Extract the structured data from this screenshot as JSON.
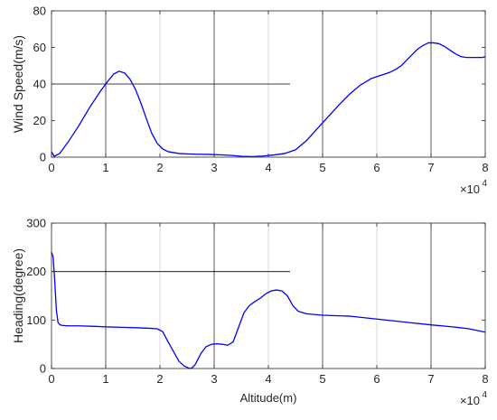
{
  "chart_data": [
    {
      "type": "line",
      "title": "",
      "xlabel": "",
      "ylabel": "Wind Speed(m/s)",
      "x_exponent_label": "×10",
      "x_exponent_power": "4",
      "xlim": [
        0,
        80000
      ],
      "ylim": [
        0,
        80
      ],
      "grid": "vertical lines at every x tick (alternating dark and light)",
      "x_ticks": [
        0,
        10000,
        20000,
        30000,
        40000,
        50000,
        60000,
        70000,
        80000
      ],
      "x_tick_labels": [
        "0",
        "1",
        "2",
        "3",
        "4",
        "5",
        "6",
        "7",
        "8"
      ],
      "y_ticks": [
        0,
        20,
        40,
        60,
        80
      ],
      "y_tick_labels": [
        "0",
        "20",
        "40",
        "60",
        "80"
      ],
      "reference_line": {
        "y": 40,
        "x_start": 0,
        "x_end": 44000,
        "color": "#000000"
      },
      "series": [
        {
          "color": "#0000ff",
          "x": [
            0,
            500,
            1500,
            3000,
            5000,
            7000,
            9000,
            10500,
            11500,
            12500,
            13500,
            14500,
            15500,
            16500,
            17500,
            18500,
            19500,
            20500,
            21500,
            22500,
            23500,
            25000,
            27000,
            29000,
            31000,
            33000,
            35000,
            37000,
            39000,
            41000,
            43000,
            45000,
            47000,
            49000,
            51000,
            53000,
            55000,
            57000,
            59000,
            61000,
            62500,
            63500,
            64500,
            65500,
            66500,
            67500,
            68500,
            69500,
            70500,
            71500,
            72500,
            73500,
            74500,
            75500,
            76500,
            77500,
            78500,
            79500,
            80000
          ],
          "y": [
            3,
            0.5,
            2,
            8,
            17,
            27,
            36,
            42,
            45.5,
            47,
            46,
            42.5,
            37,
            29.5,
            21,
            13,
            7.5,
            4.5,
            3,
            2.5,
            2,
            1.8,
            1.6,
            1.5,
            1.3,
            1,
            0.5,
            0.3,
            0.6,
            1.2,
            2,
            4,
            9,
            15.5,
            22,
            28.5,
            34.5,
            39.5,
            43,
            45,
            46.5,
            48,
            50,
            53,
            56,
            59,
            61,
            62.5,
            62.5,
            62,
            60.5,
            58.5,
            56.5,
            55,
            54.5,
            54.5,
            54.5,
            54.5,
            55
          ]
        }
      ]
    },
    {
      "type": "line",
      "title": "",
      "xlabel": "Altitude(m)",
      "ylabel": "Heading(degree)",
      "x_exponent_label": "×10",
      "x_exponent_power": "4",
      "xlim": [
        0,
        80000
      ],
      "ylim": [
        0,
        300
      ],
      "grid": "vertical lines at every x tick (alternating dark and light)",
      "x_ticks": [
        0,
        10000,
        20000,
        30000,
        40000,
        50000,
        60000,
        70000,
        80000
      ],
      "x_tick_labels": [
        "0",
        "1",
        "2",
        "3",
        "4",
        "5",
        "6",
        "7",
        "8"
      ],
      "y_ticks": [
        0,
        100,
        200,
        300
      ],
      "y_tick_labels": [
        "0",
        "100",
        "200",
        "300"
      ],
      "reference_line": {
        "y": 200,
        "x_start": 0,
        "x_end": 44000,
        "color": "#000000"
      },
      "series": [
        {
          "color": "#0000ff",
          "x": [
            0,
            300,
            600,
            900,
            1200,
            1600,
            2000,
            3000,
            5000,
            8000,
            10000,
            13000,
            16000,
            18000,
            19500,
            20500,
            21500,
            22500,
            23500,
            24500,
            25500,
            26000,
            26500,
            27500,
            28500,
            29500,
            30500,
            31500,
            32500,
            33500,
            34500,
            35500,
            36500,
            37500,
            38500,
            39500,
            40500,
            41500,
            42500,
            43500,
            44500,
            45500,
            47000,
            50000,
            55000,
            60000,
            65000,
            70000,
            74000,
            77000,
            80000
          ],
          "y": [
            240,
            230,
            180,
            120,
            95,
            90,
            89,
            88,
            88,
            87,
            86,
            85,
            84,
            83,
            82,
            76,
            55,
            35,
            15,
            5,
            0,
            2,
            8,
            30,
            45,
            50,
            51,
            50,
            48,
            55,
            85,
            115,
            130,
            138,
            145,
            154,
            160,
            162,
            160,
            150,
            130,
            118,
            113,
            110,
            108,
            102,
            96,
            90,
            86,
            82,
            75
          ]
        }
      ]
    }
  ]
}
